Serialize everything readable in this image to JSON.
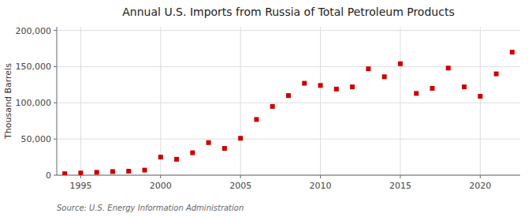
{
  "chart_data": {
    "type": "scatter",
    "title": "Annual U.S. Imports from Russia of Total Petroleum Products",
    "ylabel": "Thousand Barrels",
    "annotations": [
      "Source: U.S. Energy Information Administration"
    ],
    "x": [
      1994,
      1995,
      1996,
      1997,
      1998,
      1999,
      2000,
      2001,
      2002,
      2003,
      2004,
      2005,
      2006,
      2007,
      2008,
      2009,
      2010,
      2011,
      2012,
      2013,
      2014,
      2015,
      2016,
      2017,
      2018,
      2019,
      2020,
      2021,
      2022
    ],
    "values": [
      2000,
      3000,
      4000,
      5000,
      5500,
      7000,
      25000,
      22000,
      31000,
      45000,
      37000,
      51000,
      77000,
      95000,
      110000,
      127000,
      124000,
      119000,
      122000,
      147000,
      136000,
      154000,
      113000,
      120000,
      148000,
      122000,
      109000,
      140000,
      170000
    ],
    "color": "#cc0000",
    "marker": "square",
    "xlim": [
      1993.5,
      2022.5
    ],
    "ylim": [
      0,
      205000
    ],
    "xticks": [
      1995,
      2000,
      2005,
      2010,
      2015,
      2020
    ],
    "yticks": [
      0,
      {
        "value": 50000,
        "label": "50,000"
      },
      {
        "value": 100000,
        "label": "100,000"
      },
      {
        "value": 150000,
        "label": "150,000"
      },
      {
        "value": 200000,
        "label": "200,000"
      }
    ],
    "grid": true
  }
}
